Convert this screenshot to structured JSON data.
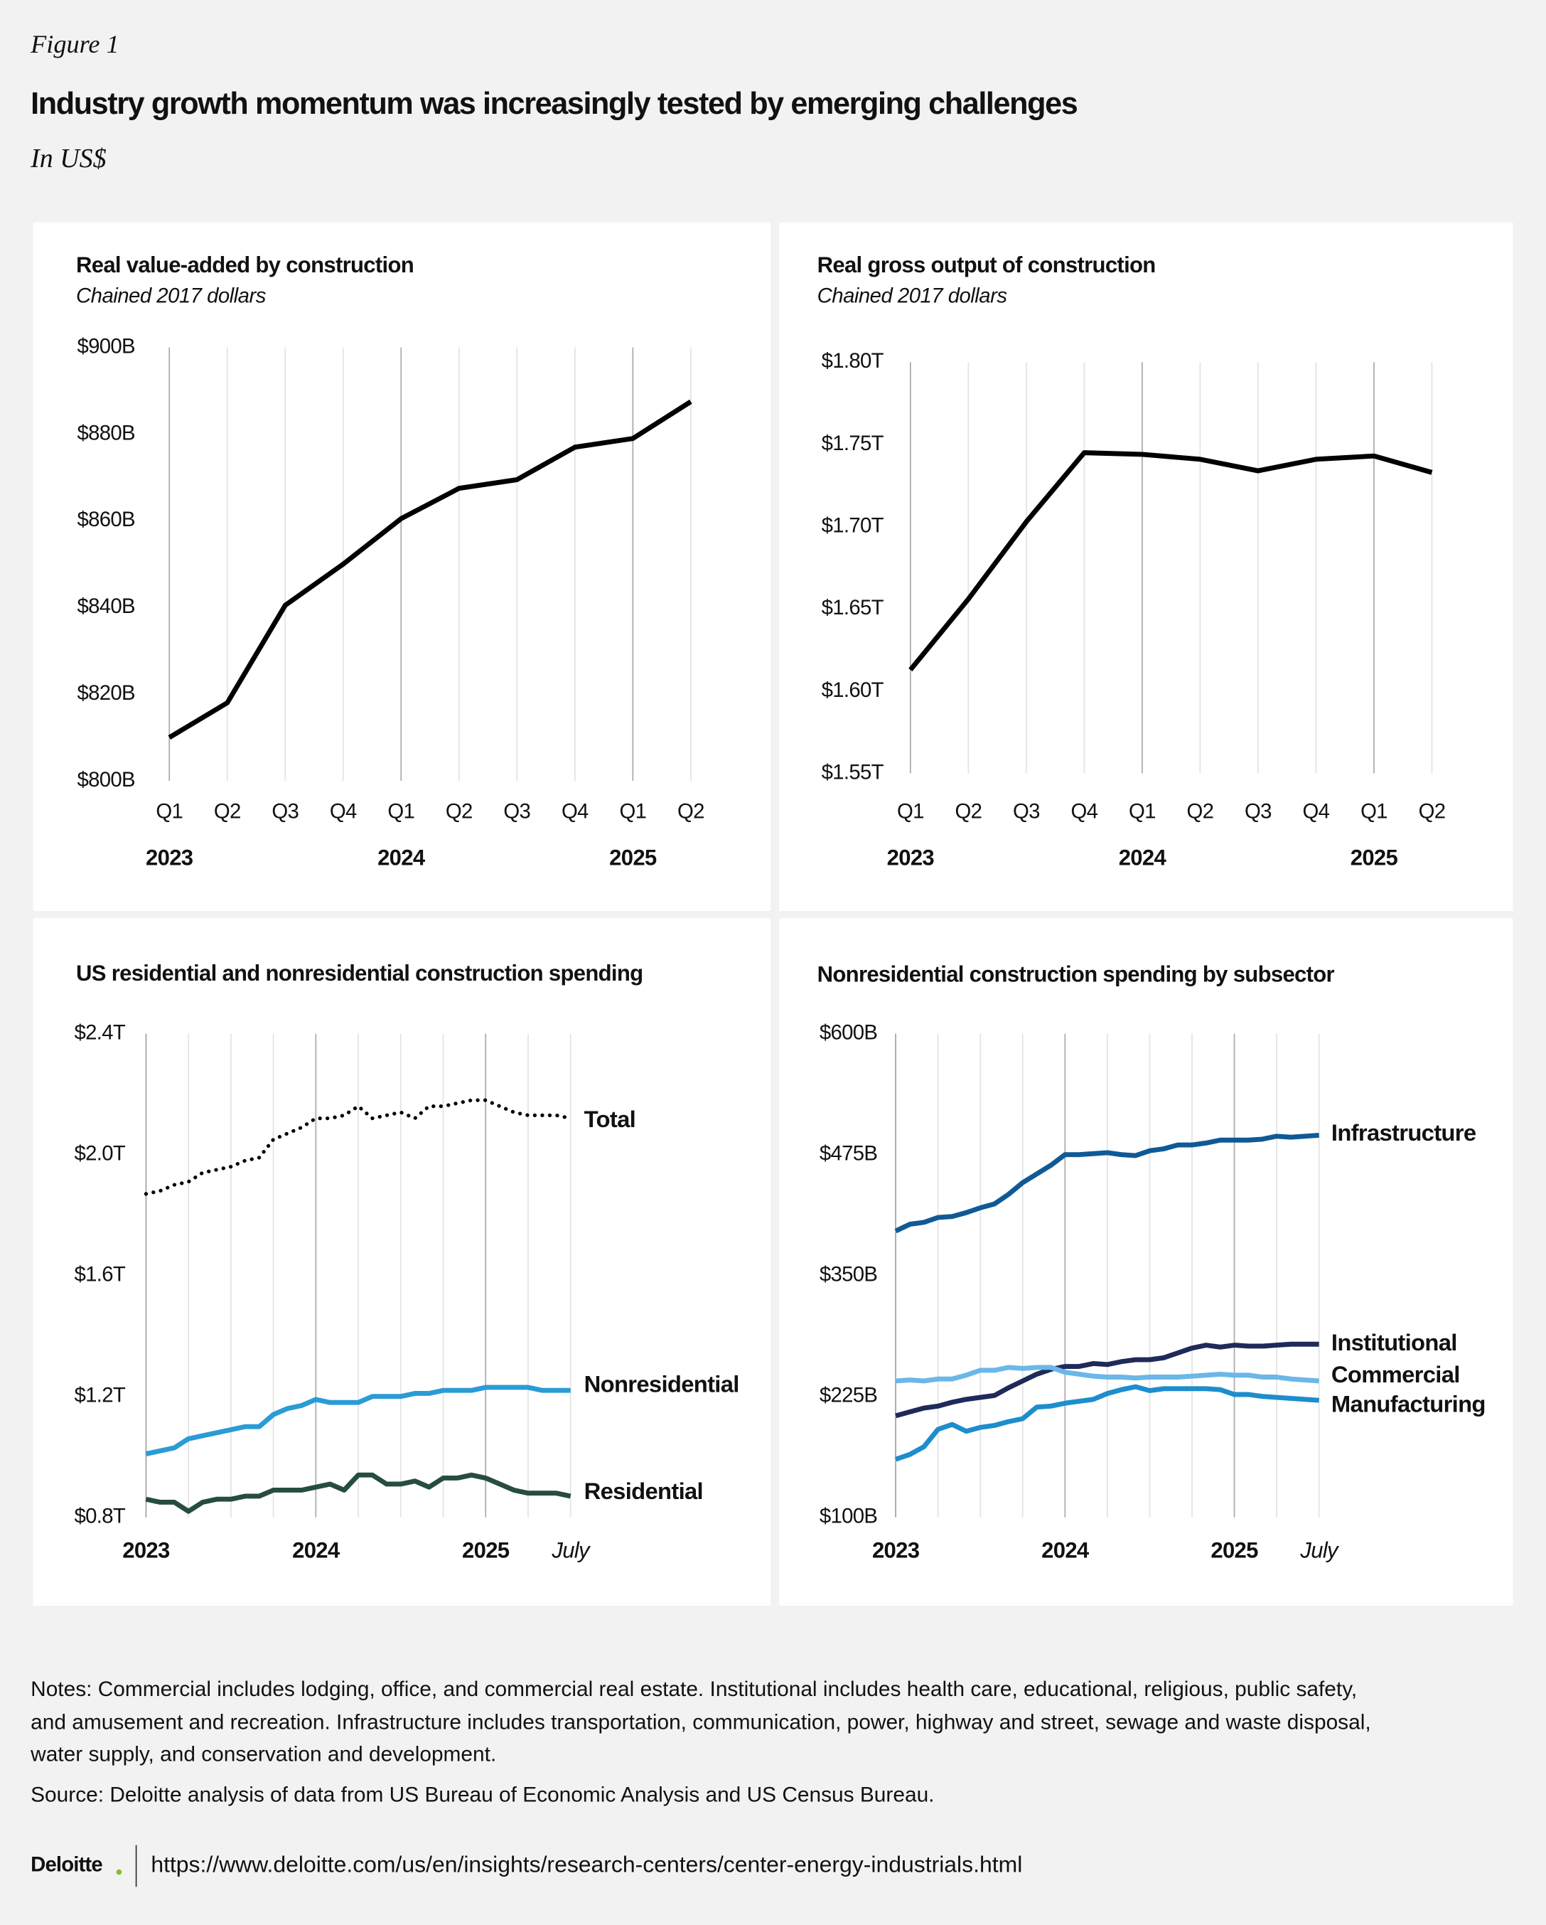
{
  "figure_label": "Figure 1",
  "title": "Industry growth momentum was increasingly tested by emerging challenges",
  "subtitle": "In US$",
  "chart_data": [
    {
      "type": "line",
      "title": "Real value-added by construction",
      "subtitle": "Chained 2017 dollars",
      "categories": [
        "Q1",
        "Q2",
        "Q3",
        "Q4",
        "Q1",
        "Q2",
        "Q3",
        "Q4",
        "Q1",
        "Q2"
      ],
      "category_groups": [
        "2023",
        null,
        null,
        null,
        "2024",
        null,
        null,
        null,
        "2025",
        null
      ],
      "values": [
        810,
        818,
        840.5,
        850,
        860.5,
        867.5,
        869.5,
        877,
        879,
        887.5
      ],
      "color": "#000000",
      "ylim": [
        800,
        900
      ],
      "yticks": [
        {
          "value": 800,
          "label": "$800B"
        },
        {
          "value": 820,
          "label": "$820B"
        },
        {
          "value": 840,
          "label": "$840B"
        },
        {
          "value": 860,
          "label": "$860B"
        },
        {
          "value": 880,
          "label": "$880B"
        },
        {
          "value": 900,
          "label": "$900B"
        }
      ]
    },
    {
      "type": "line",
      "title": "Real gross output of construction",
      "subtitle": "Chained 2017 dollars",
      "categories": [
        "Q1",
        "Q2",
        "Q3",
        "Q4",
        "Q1",
        "Q2",
        "Q3",
        "Q4",
        "Q1",
        "Q2"
      ],
      "category_groups": [
        "2023",
        null,
        null,
        null,
        "2024",
        null,
        null,
        null,
        "2025",
        null
      ],
      "values": [
        1.613,
        1.656,
        1.703,
        1.745,
        1.744,
        1.741,
        1.734,
        1.741,
        1.743,
        1.733
      ],
      "color": "#000000",
      "ylim": [
        1.55,
        1.8
      ],
      "yticks": [
        {
          "value": 1.55,
          "label": "$1.55T"
        },
        {
          "value": 1.6,
          "label": "$1.60T"
        },
        {
          "value": 1.65,
          "label": "$1.65T"
        },
        {
          "value": 1.7,
          "label": "$1.70T"
        },
        {
          "value": 1.75,
          "label": "$1.75T"
        },
        {
          "value": 1.8,
          "label": "$1.80T"
        }
      ]
    },
    {
      "type": "line",
      "title": "US residential and nonresidential construction spending",
      "categories": [
        "2023",
        null,
        null,
        null,
        null,
        null,
        null,
        null,
        null,
        null,
        null,
        null,
        "2024",
        null,
        null,
        null,
        null,
        null,
        null,
        null,
        null,
        null,
        null,
        null,
        "2025",
        null,
        null,
        null,
        null,
        null,
        "July"
      ],
      "series": [
        {
          "name": "Total",
          "color": "#000000",
          "line_style": "dotted",
          "values": [
            1.87,
            1.88,
            1.9,
            1.91,
            1.94,
            1.95,
            1.96,
            1.98,
            1.99,
            2.05,
            2.07,
            2.09,
            2.12,
            2.12,
            2.13,
            2.16,
            2.12,
            2.13,
            2.14,
            2.12,
            2.16,
            2.16,
            2.17,
            2.18,
            2.18,
            2.16,
            2.14,
            2.13,
            2.13,
            2.13,
            2.12
          ]
        },
        {
          "name": "Nonresidential",
          "color": "#2b9bd6",
          "line_style": "solid",
          "values": [
            1.01,
            1.02,
            1.03,
            1.06,
            1.07,
            1.08,
            1.09,
            1.1,
            1.1,
            1.14,
            1.16,
            1.17,
            1.19,
            1.18,
            1.18,
            1.18,
            1.2,
            1.2,
            1.2,
            1.21,
            1.21,
            1.22,
            1.22,
            1.22,
            1.23,
            1.23,
            1.23,
            1.23,
            1.22,
            1.22,
            1.22
          ]
        },
        {
          "name": "Residential",
          "color": "#264d3e",
          "line_style": "solid",
          "values": [
            0.86,
            0.85,
            0.85,
            0.82,
            0.85,
            0.86,
            0.86,
            0.87,
            0.87,
            0.89,
            0.89,
            0.89,
            0.9,
            0.91,
            0.89,
            0.94,
            0.94,
            0.91,
            0.91,
            0.92,
            0.9,
            0.93,
            0.93,
            0.94,
            0.93,
            0.91,
            0.89,
            0.88,
            0.88,
            0.88,
            0.87
          ]
        }
      ],
      "ylim": [
        0.8,
        2.4
      ],
      "yticks": [
        {
          "value": 0.8,
          "label": "$0.8T"
        },
        {
          "value": 1.2,
          "label": "$1.2T"
        },
        {
          "value": 1.6,
          "label": "$1.6T"
        },
        {
          "value": 2.0,
          "label": "$2.0T"
        },
        {
          "value": 2.4,
          "label": "$2.4T"
        }
      ]
    },
    {
      "type": "line",
      "title": "Nonresidential construction spending by subsector",
      "categories": [
        "2023",
        null,
        null,
        null,
        null,
        null,
        null,
        null,
        null,
        null,
        null,
        null,
        "2024",
        null,
        null,
        null,
        null,
        null,
        null,
        null,
        null,
        null,
        null,
        null,
        "2025",
        null,
        null,
        null,
        null,
        null,
        "July"
      ],
      "series": [
        {
          "name": "Infrastructure",
          "color": "#0f5a96",
          "line_style": "solid",
          "values": [
            396,
            403,
            405,
            410,
            411,
            415,
            420,
            424,
            434,
            446,
            455,
            464,
            475,
            475,
            476,
            477,
            475,
            474,
            479,
            481,
            485,
            485,
            487,
            490,
            490,
            490,
            491,
            494,
            493,
            494,
            495
          ]
        },
        {
          "name": "Institutional",
          "color": "#1f2a5a",
          "line_style": "solid",
          "values": [
            205,
            209,
            213,
            215,
            219,
            222,
            224,
            226,
            234,
            241,
            248,
            253,
            256,
            256,
            259,
            258,
            261,
            263,
            263,
            265,
            270,
            275,
            278,
            276,
            278,
            277,
            277,
            278,
            279,
            279,
            279
          ]
        },
        {
          "name": "Commercial",
          "color": "#6bb7e8",
          "line_style": "solid",
          "values": [
            241,
            242,
            241,
            243,
            243,
            247,
            252,
            252,
            255,
            254,
            255,
            255,
            250,
            248,
            246,
            245,
            245,
            244,
            245,
            245,
            245,
            246,
            247,
            248,
            247,
            247,
            245,
            245,
            243,
            242,
            241
          ]
        },
        {
          "name": "Manufacturing",
          "color": "#1d8dcc",
          "line_style": "solid",
          "values": [
            160,
            165,
            173,
            191,
            196,
            189,
            193,
            195,
            199,
            202,
            214,
            215,
            218,
            220,
            222,
            228,
            232,
            235,
            231,
            233,
            233,
            233,
            233,
            232,
            227,
            227,
            225,
            224,
            223,
            222,
            221
          ]
        }
      ],
      "ylim": [
        100,
        600
      ],
      "yticks": [
        {
          "value": 100,
          "label": "$100B"
        },
        {
          "value": 225,
          "label": "$225B"
        },
        {
          "value": 350,
          "label": "$350B"
        },
        {
          "value": 475,
          "label": "$475B"
        },
        {
          "value": 600,
          "label": "$600B"
        }
      ]
    }
  ],
  "notes": [
    "Notes: Commercial includes lodging, office, and commercial real estate. Institutional includes health care, educational, religious, public safety,",
    "and amusement and recreation. Infrastructure includes transportation, communication, power, highway and street, sewage and waste disposal,",
    "water supply, and conservation and development."
  ],
  "source": "Source: Deloitte analysis of data from US Bureau of Economic Analysis and US Census Bureau.",
  "footer": {
    "logo": "Deloitte",
    "url": "https://www.deloitte.com/us/en/insights/research-centers/center-energy-industrials.html"
  }
}
